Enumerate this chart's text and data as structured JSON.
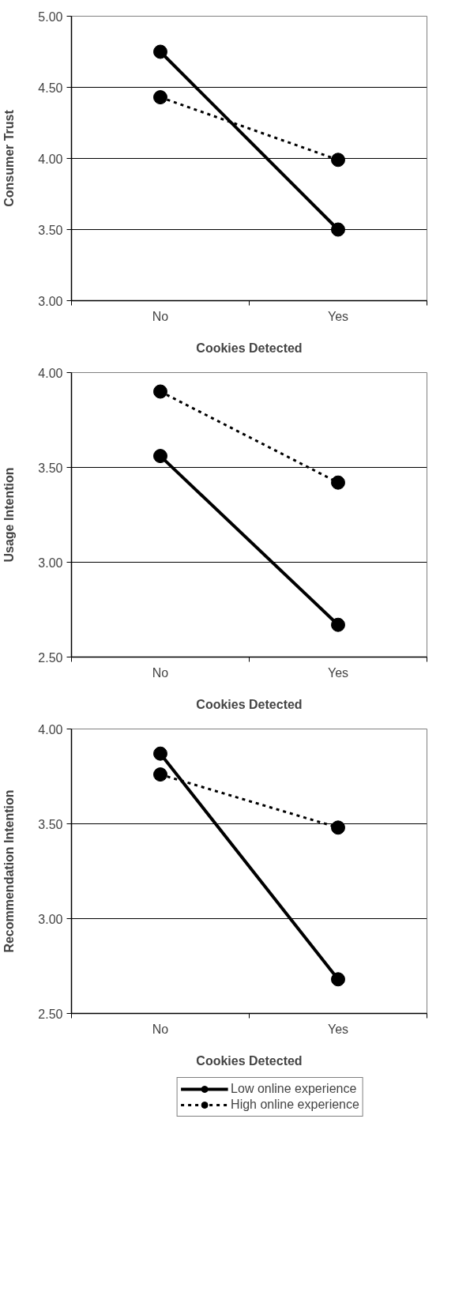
{
  "chart_data": [
    {
      "type": "line",
      "categories": [
        "No",
        "Yes"
      ],
      "xlabel": "Cookies Detected",
      "ylabel": "Consumer Trust",
      "ylim": [
        3.0,
        5.0
      ],
      "yticks": [
        {
          "value": 3.0,
          "label": "3.00"
        },
        {
          "value": 3.5,
          "label": "3.50"
        },
        {
          "value": 4.0,
          "label": "4.00"
        },
        {
          "value": 4.5,
          "label": "4.50"
        },
        {
          "value": 5.0,
          "label": "5.00"
        }
      ],
      "grid": "y",
      "marker": "circle",
      "series": [
        {
          "color": "#000000",
          "line_style": "solid",
          "values": [
            4.75,
            3.5
          ]
        },
        {
          "color": "#000000",
          "line_style": "dashed",
          "values": [
            4.43,
            3.99
          ]
        }
      ]
    },
    {
      "type": "line",
      "categories": [
        "No",
        "Yes"
      ],
      "xlabel": "Cookies Detected",
      "ylabel": "Usage Intention",
      "ylim": [
        2.5,
        4.0
      ],
      "yticks": [
        {
          "value": 2.5,
          "label": "2.50"
        },
        {
          "value": 3.0,
          "label": "3.00"
        },
        {
          "value": 3.5,
          "label": "3.50"
        },
        {
          "value": 4.0,
          "label": "4.00"
        }
      ],
      "grid": "y",
      "marker": "circle",
      "series": [
        {
          "color": "#000000",
          "line_style": "solid",
          "values": [
            3.56,
            2.67
          ]
        },
        {
          "color": "#000000",
          "line_style": "dashed",
          "values": [
            3.9,
            3.42
          ]
        }
      ]
    },
    {
      "type": "line",
      "categories": [
        "No",
        "Yes"
      ],
      "xlabel": "Cookies Detected",
      "ylabel": "Recommendation Intention",
      "ylim": [
        2.5,
        4.0
      ],
      "yticks": [
        {
          "value": 2.5,
          "label": "2.50"
        },
        {
          "value": 3.0,
          "label": "3.00"
        },
        {
          "value": 3.5,
          "label": "3.50"
        },
        {
          "value": 4.0,
          "label": "4.00"
        }
      ],
      "grid": "y",
      "marker": "circle",
      "legend": "bottom",
      "series": [
        {
          "name": "Low online experience",
          "color": "#000000",
          "line_style": "solid",
          "values": [
            3.87,
            2.68
          ]
        },
        {
          "name": "High online experience",
          "color": "#000000",
          "line_style": "dashed",
          "values": [
            3.76,
            3.48
          ]
        }
      ]
    }
  ]
}
